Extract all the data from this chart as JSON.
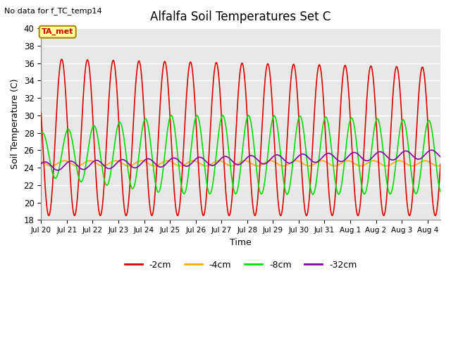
{
  "title": "Alfalfa Soil Temperatures Set C",
  "xlabel": "Time",
  "ylabel": "Soil Temperature (C)",
  "top_left_text": "No data for f_TC_temp14",
  "annotation_text": "TA_met",
  "ylim": [
    18,
    40
  ],
  "yticks": [
    18,
    20,
    22,
    24,
    26,
    28,
    30,
    32,
    34,
    36,
    38,
    40
  ],
  "background_color": "#ffffff",
  "plot_bg_color": "#e8e8e8",
  "grid_color": "#ffffff",
  "tick_labels": [
    "Jul 20",
    "Jul 21",
    "Jul 22",
    "Jul 23",
    "Jul 24",
    "Jul 25",
    "Jul 26",
    "Jul 27",
    "Jul 28",
    "Jul 29",
    "Jul 30",
    "Jul 31",
    "Aug 1",
    "Aug 2",
    "Aug 3",
    "Aug 4"
  ],
  "legend_colors": [
    "#dd0000",
    "#ffaa00",
    "#00dd00",
    "#8800aa"
  ],
  "legend_labels": [
    "-2cm",
    "-4cm",
    "-8cm",
    "-32cm"
  ]
}
